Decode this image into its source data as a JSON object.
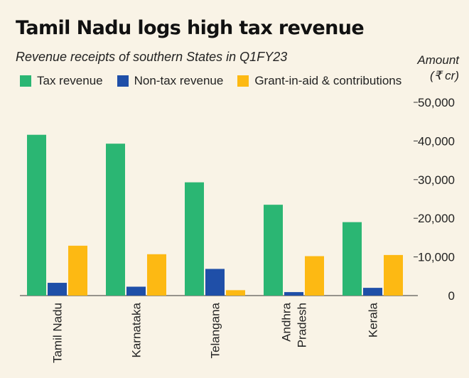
{
  "chart_data": {
    "type": "bar",
    "title": "Tamil Nadu logs high tax revenue",
    "subtitle": "Revenue receipts of southern States in Q1FY23",
    "ylabel": "Amount (₹ cr)",
    "ylabel_lines": [
      "Amount",
      "(₹ cr)"
    ],
    "xlabel": "",
    "categories": [
      "Tamil Nadu",
      "Karnataka",
      "Telangana",
      "Andhra Pradesh",
      "Kerala"
    ],
    "category_lines": [
      [
        "Tamil Nadu"
      ],
      [
        "Karnataka"
      ],
      [
        "Telangana"
      ],
      [
        "Andhra",
        "Pradesh"
      ],
      [
        "Kerala"
      ]
    ],
    "series": [
      {
        "name": "Tax revenue",
        "color": "#2bb673",
        "values": [
          41600,
          39300,
          29300,
          23500,
          19000
        ]
      },
      {
        "name": "Non-tax revenue",
        "color": "#1f4fa8",
        "values": [
          3300,
          2300,
          6900,
          900,
          2000
        ]
      },
      {
        "name": "Grant-in-aid & contributions",
        "color": "#fdb913",
        "values": [
          12900,
          10700,
          1400,
          10200,
          10500
        ]
      }
    ],
    "ylim": [
      0,
      50000
    ],
    "yticks": [
      0,
      10000,
      20000,
      30000,
      40000,
      50000
    ],
    "ytick_labels": [
      "0",
      "10,000",
      "20,000",
      "30,000",
      "40,000",
      "50,000"
    ],
    "grid": false,
    "legend_position": "top"
  }
}
